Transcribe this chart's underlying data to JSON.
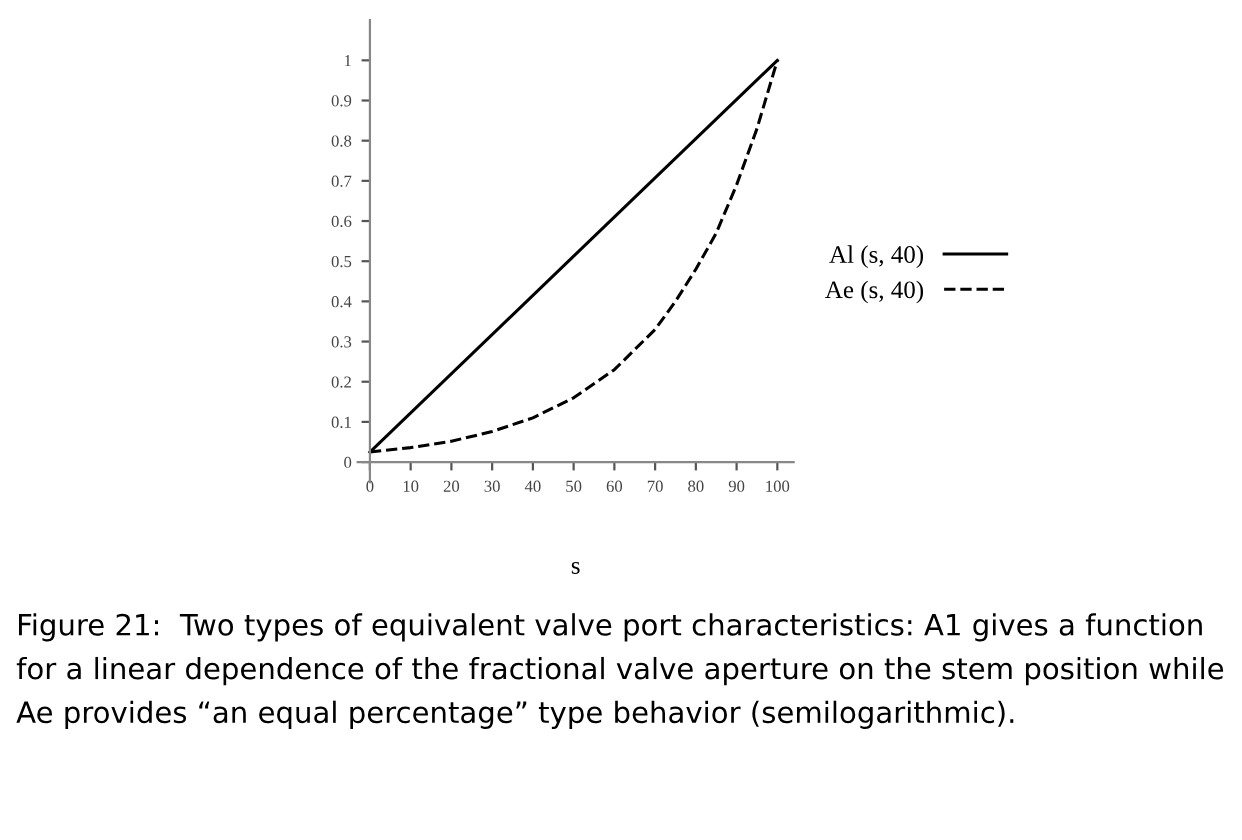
{
  "chart_data": {
    "type": "line",
    "xlabel": "s",
    "x": [
      0,
      10,
      20,
      30,
      40,
      50,
      60,
      70,
      75,
      80,
      85,
      90,
      95,
      100
    ],
    "series": [
      {
        "name": "Al (s, 40)",
        "color": "#000000",
        "line_style": "solid",
        "x": [
          0,
          100
        ],
        "values": [
          0.025,
          1
        ]
      },
      {
        "name": "Ae (s, 40)",
        "color": "#000000",
        "line_style": "dashed",
        "values": [
          0.025,
          0.036,
          0.052,
          0.076,
          0.11,
          0.16,
          0.23,
          0.33,
          0.4,
          0.48,
          0.57,
          0.69,
          0.83,
          1
        ]
      }
    ],
    "xlim": [
      -3,
      104
    ],
    "ylim": [
      -0.05,
      1.1
    ],
    "xticks": [
      0,
      10,
      20,
      30,
      40,
      50,
      60,
      70,
      80,
      90,
      100
    ],
    "yticks": [
      0,
      0.1,
      0.2,
      0.3,
      0.4,
      0.5,
      0.6,
      0.7,
      0.8,
      0.9,
      1
    ],
    "grid": false,
    "legend": "right",
    "marker": "none",
    "annotations": [
      "Figure 21:  Two types of equivalent valve port characteristics: A1 gives a function for a linear dependence of the fractional valve aperture on the stem position while Ae provides “an equal percentage” type behavior (semilogarithmic)."
    ]
  }
}
